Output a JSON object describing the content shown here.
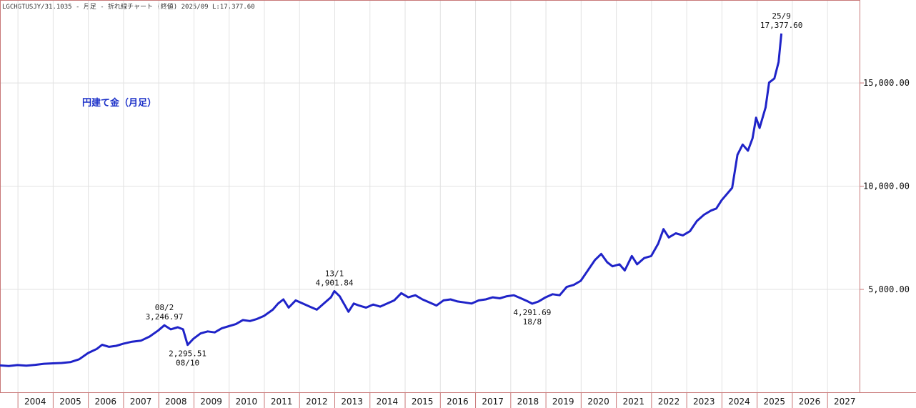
{
  "header": {
    "info": "LGCHGTUSJY/31.1035 - 月足 - 折れ線チャート (終値) 2025/09 L:17,377.60"
  },
  "chart_data": {
    "type": "line",
    "title": "円建て金（月足）",
    "xlabel": "",
    "ylabel": "",
    "x_range": [
      2003.5,
      2027.92
    ],
    "ylim": [
      0,
      19000
    ],
    "x_ticks": [
      "2004",
      "2005",
      "2006",
      "2007",
      "2008",
      "2009",
      "2010",
      "2011",
      "2012",
      "2013",
      "2014",
      "2015",
      "2016",
      "2017",
      "2018",
      "2019",
      "2020",
      "2021",
      "2022",
      "2023",
      "2024",
      "2025",
      "2026",
      "2027"
    ],
    "y_ticks": [
      {
        "value": 5000,
        "label": "5,000.00"
      },
      {
        "value": 10000,
        "label": "10,000.00"
      },
      {
        "value": 15000,
        "label": "15,000.00"
      }
    ],
    "grid": true,
    "series": [
      {
        "color": "#1f23c8",
        "points": [
          [
            2003.5,
            1300
          ],
          [
            2003.75,
            1270
          ],
          [
            2004.0,
            1320
          ],
          [
            2004.25,
            1290
          ],
          [
            2004.5,
            1330
          ],
          [
            2004.75,
            1380
          ],
          [
            2005.0,
            1400
          ],
          [
            2005.25,
            1420
          ],
          [
            2005.5,
            1460
          ],
          [
            2005.75,
            1600
          ],
          [
            2006.0,
            1900
          ],
          [
            2006.25,
            2100
          ],
          [
            2006.4,
            2300
          ],
          [
            2006.6,
            2200
          ],
          [
            2006.8,
            2250
          ],
          [
            2007.0,
            2350
          ],
          [
            2007.25,
            2450
          ],
          [
            2007.5,
            2500
          ],
          [
            2007.75,
            2700
          ],
          [
            2008.0,
            3000
          ],
          [
            2008.17,
            3246.97
          ],
          [
            2008.35,
            3050
          ],
          [
            2008.55,
            3150
          ],
          [
            2008.7,
            3050
          ],
          [
            2008.83,
            2295.51
          ],
          [
            2009.0,
            2600
          ],
          [
            2009.2,
            2850
          ],
          [
            2009.4,
            2950
          ],
          [
            2009.6,
            2900
          ],
          [
            2009.8,
            3100
          ],
          [
            2010.0,
            3200
          ],
          [
            2010.2,
            3300
          ],
          [
            2010.4,
            3500
          ],
          [
            2010.6,
            3450
          ],
          [
            2010.8,
            3550
          ],
          [
            2011.0,
            3700
          ],
          [
            2011.25,
            4000
          ],
          [
            2011.4,
            4300
          ],
          [
            2011.55,
            4500
          ],
          [
            2011.7,
            4100
          ],
          [
            2011.9,
            4450
          ],
          [
            2012.1,
            4300
          ],
          [
            2012.3,
            4150
          ],
          [
            2012.5,
            4000
          ],
          [
            2012.7,
            4300
          ],
          [
            2012.9,
            4600
          ],
          [
            2013.0,
            4901.84
          ],
          [
            2013.15,
            4650
          ],
          [
            2013.3,
            4200
          ],
          [
            2013.4,
            3900
          ],
          [
            2013.55,
            4300
          ],
          [
            2013.7,
            4200
          ],
          [
            2013.9,
            4100
          ],
          [
            2014.1,
            4250
          ],
          [
            2014.3,
            4150
          ],
          [
            2014.5,
            4300
          ],
          [
            2014.7,
            4450
          ],
          [
            2014.9,
            4800
          ],
          [
            2015.1,
            4600
          ],
          [
            2015.3,
            4700
          ],
          [
            2015.5,
            4500
          ],
          [
            2015.7,
            4350
          ],
          [
            2015.9,
            4200
          ],
          [
            2016.1,
            4450
          ],
          [
            2016.3,
            4500
          ],
          [
            2016.5,
            4400
          ],
          [
            2016.7,
            4350
          ],
          [
            2016.9,
            4300
          ],
          [
            2017.1,
            4450
          ],
          [
            2017.3,
            4500
          ],
          [
            2017.5,
            4600
          ],
          [
            2017.7,
            4550
          ],
          [
            2017.9,
            4650
          ],
          [
            2018.1,
            4700
          ],
          [
            2018.3,
            4550
          ],
          [
            2018.5,
            4400
          ],
          [
            2018.62,
            4291.69
          ],
          [
            2018.8,
            4400
          ],
          [
            2019.0,
            4600
          ],
          [
            2019.2,
            4750
          ],
          [
            2019.4,
            4700
          ],
          [
            2019.6,
            5100
          ],
          [
            2019.8,
            5200
          ],
          [
            2020.0,
            5400
          ],
          [
            2020.2,
            5900
          ],
          [
            2020.4,
            6400
          ],
          [
            2020.58,
            6700
          ],
          [
            2020.75,
            6300
          ],
          [
            2020.9,
            6100
          ],
          [
            2021.1,
            6200
          ],
          [
            2021.25,
            5900
          ],
          [
            2021.45,
            6600
          ],
          [
            2021.6,
            6200
          ],
          [
            2021.8,
            6500
          ],
          [
            2022.0,
            6600
          ],
          [
            2022.2,
            7200
          ],
          [
            2022.35,
            7900
          ],
          [
            2022.5,
            7500
          ],
          [
            2022.7,
            7700
          ],
          [
            2022.9,
            7600
          ],
          [
            2023.1,
            7800
          ],
          [
            2023.3,
            8300
          ],
          [
            2023.5,
            8600
          ],
          [
            2023.7,
            8800
          ],
          [
            2023.85,
            8900
          ],
          [
            2024.0,
            9300
          ],
          [
            2024.15,
            9600
          ],
          [
            2024.3,
            9900
          ],
          [
            2024.45,
            11500
          ],
          [
            2024.6,
            12000
          ],
          [
            2024.75,
            11700
          ],
          [
            2024.88,
            12300
          ],
          [
            2024.98,
            13300
          ],
          [
            2025.08,
            12800
          ],
          [
            2025.25,
            13800
          ],
          [
            2025.35,
            15000
          ],
          [
            2025.5,
            15200
          ],
          [
            2025.62,
            16000
          ],
          [
            2025.7,
            17377.6
          ]
        ]
      }
    ],
    "annotations": [
      {
        "x": 2008.17,
        "y": 3246.97,
        "lines": [
          "08/2",
          "3,246.97"
        ],
        "pos": "above"
      },
      {
        "x": 2008.83,
        "y": 2295.51,
        "lines": [
          "2,295.51",
          "08/10"
        ],
        "pos": "below"
      },
      {
        "x": 2013.0,
        "y": 4901.84,
        "lines": [
          "13/1",
          "4,901.84"
        ],
        "pos": "above"
      },
      {
        "x": 2018.62,
        "y": 4291.69,
        "lines": [
          "4,291.69",
          "18/8"
        ],
        "pos": "below"
      },
      {
        "x": 2025.7,
        "y": 17377.6,
        "lines": [
          "25/9",
          "17,377.60"
        ],
        "pos": "above"
      }
    ]
  }
}
